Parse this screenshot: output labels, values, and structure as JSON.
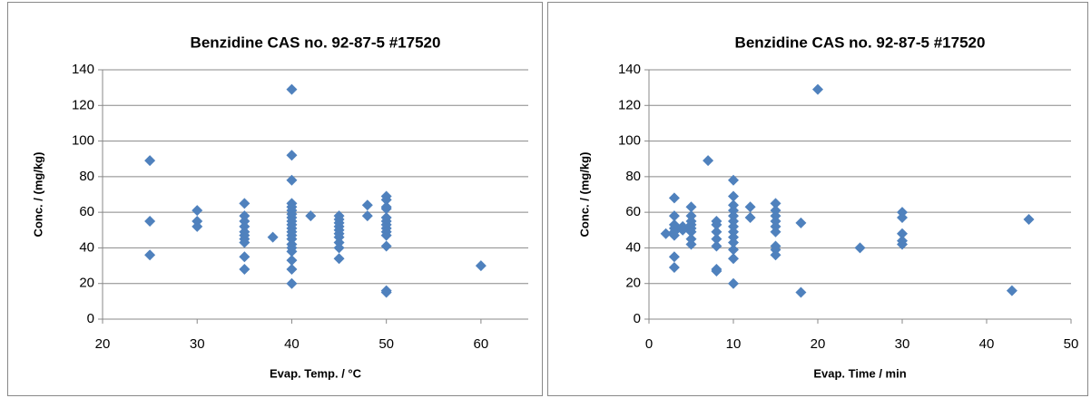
{
  "chart_data": [
    {
      "type": "scatter",
      "title": "Benzidine CAS no. 92-87-5   #17520",
      "x_label": "Evap. Temp. / °C",
      "y_label": "Conc. / (mg/kg)",
      "xlim": [
        20,
        65
      ],
      "xticks": [
        20,
        30,
        40,
        50,
        60
      ],
      "ylim": [
        0,
        140
      ],
      "yticks": [
        0,
        20,
        40,
        60,
        80,
        100,
        120,
        140
      ],
      "grid": true,
      "series": [
        {
          "name": null,
          "color": "#4f81bd",
          "x": [
            25,
            25,
            25,
            30,
            30,
            30,
            35,
            35,
            35,
            35,
            35,
            35,
            35,
            35,
            35,
            35,
            38,
            40,
            40,
            40,
            40,
            40,
            40,
            40,
            40,
            40,
            40,
            40,
            40,
            40,
            40,
            40,
            40,
            40,
            40,
            40,
            40,
            42,
            45,
            45,
            45,
            45,
            45,
            45,
            45,
            45,
            45,
            45,
            48,
            48,
            50,
            50,
            50,
            50,
            50,
            50,
            50,
            50,
            50,
            50,
            50,
            50,
            50,
            60
          ],
          "values": [
            89,
            55,
            36,
            61,
            55,
            52,
            65,
            58,
            55,
            52,
            49,
            47,
            45,
            43,
            35,
            28,
            46,
            129,
            92,
            78,
            65,
            63,
            61,
            59,
            57,
            55,
            53,
            51,
            49,
            47,
            45,
            42,
            40,
            38,
            33,
            28,
            20,
            58,
            58,
            56,
            54,
            52,
            50,
            48,
            46,
            43,
            40,
            34,
            64,
            58,
            69,
            67,
            63,
            62,
            57,
            55,
            53,
            51,
            49,
            47,
            41,
            16,
            15,
            30
          ]
        }
      ]
    },
    {
      "type": "scatter",
      "title": "Benzidine CAS no. 92-87-5   #17520",
      "x_label": "Evap. Time / min",
      "y_label": "Conc. / (mg/kg)",
      "xlim": [
        0,
        50
      ],
      "xticks": [
        0,
        10,
        20,
        30,
        40,
        50
      ],
      "ylim": [
        0,
        140
      ],
      "yticks": [
        0,
        20,
        40,
        60,
        80,
        100,
        120,
        140
      ],
      "grid": true,
      "series": [
        {
          "name": null,
          "color": "#4f81bd",
          "x": [
            2,
            3,
            3,
            3,
            3,
            3,
            3,
            3,
            3,
            4,
            4,
            5,
            5,
            5,
            5,
            5,
            5,
            5,
            5,
            7,
            8,
            8,
            8,
            8,
            8,
            8,
            8,
            10,
            10,
            10,
            10,
            10,
            10,
            10,
            10,
            10,
            10,
            10,
            10,
            10,
            12,
            12,
            15,
            15,
            15,
            15,
            15,
            15,
            15,
            15,
            15,
            18,
            18,
            20,
            25,
            30,
            30,
            30,
            30,
            30,
            43,
            45
          ],
          "values": [
            48,
            68,
            58,
            53,
            51,
            49,
            47,
            35,
            29,
            52,
            50,
            63,
            58,
            55,
            53,
            51,
            49,
            45,
            42,
            89,
            55,
            53,
            49,
            45,
            41,
            28,
            27,
            78,
            69,
            64,
            61,
            58,
            55,
            52,
            49,
            46,
            43,
            39,
            34,
            20,
            63,
            57,
            65,
            61,
            58,
            55,
            52,
            49,
            41,
            39,
            36,
            54,
            15,
            129,
            40,
            60,
            57,
            48,
            44,
            42,
            16,
            56
          ]
        }
      ]
    }
  ]
}
